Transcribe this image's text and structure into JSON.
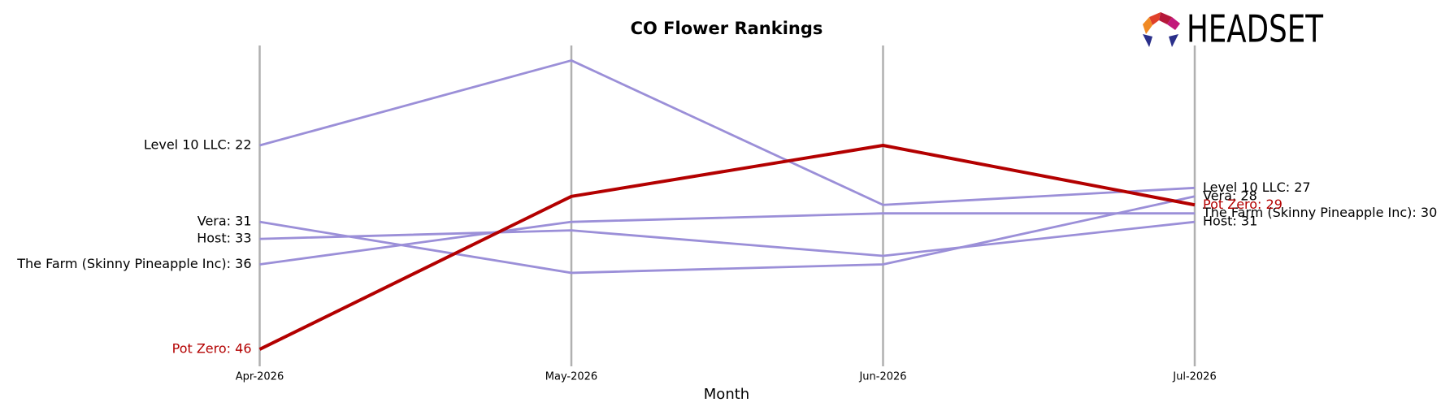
{
  "chart_data": {
    "type": "line",
    "title": "CO Flower Rankings",
    "x_label": "Month",
    "logo_text": "HEADSET",
    "categories": [
      "Apr-2026",
      "May-2026",
      "Jun-2026",
      "Jul-2026"
    ],
    "ylim": [
      48,
      10
    ],
    "grid": true,
    "series": [
      {
        "name": "Level 10 LLC",
        "color": "#9b8fd8",
        "values": [
          22,
          12,
          29,
          27
        ],
        "start_label": "Level 10 LLC: 22",
        "end_label": "Level 10 LLC: 27"
      },
      {
        "name": "Vera",
        "color": "#9b8fd8",
        "values": [
          31,
          37,
          36,
          28
        ],
        "start_label": "Vera: 31",
        "end_label": "Vera: 28"
      },
      {
        "name": "Host",
        "color": "#9b8fd8",
        "values": [
          33,
          32,
          35,
          31
        ],
        "start_label": "Host: 33",
        "end_label": "Host: 31"
      },
      {
        "name": "The Farm (Skinny Pineapple Inc)",
        "color": "#9b8fd8",
        "values": [
          36,
          31,
          30,
          30
        ],
        "start_label": "The Farm (Skinny Pineapple Inc): 36",
        "end_label": "The Farm (Skinny Pineapple Inc): 30"
      },
      {
        "name": "Pot Zero",
        "color": "#b30000",
        "highlight": true,
        "values": [
          46,
          28,
          22,
          29
        ],
        "start_label": "Pot Zero: 46",
        "end_label": "Pot Zero: 29"
      }
    ]
  }
}
